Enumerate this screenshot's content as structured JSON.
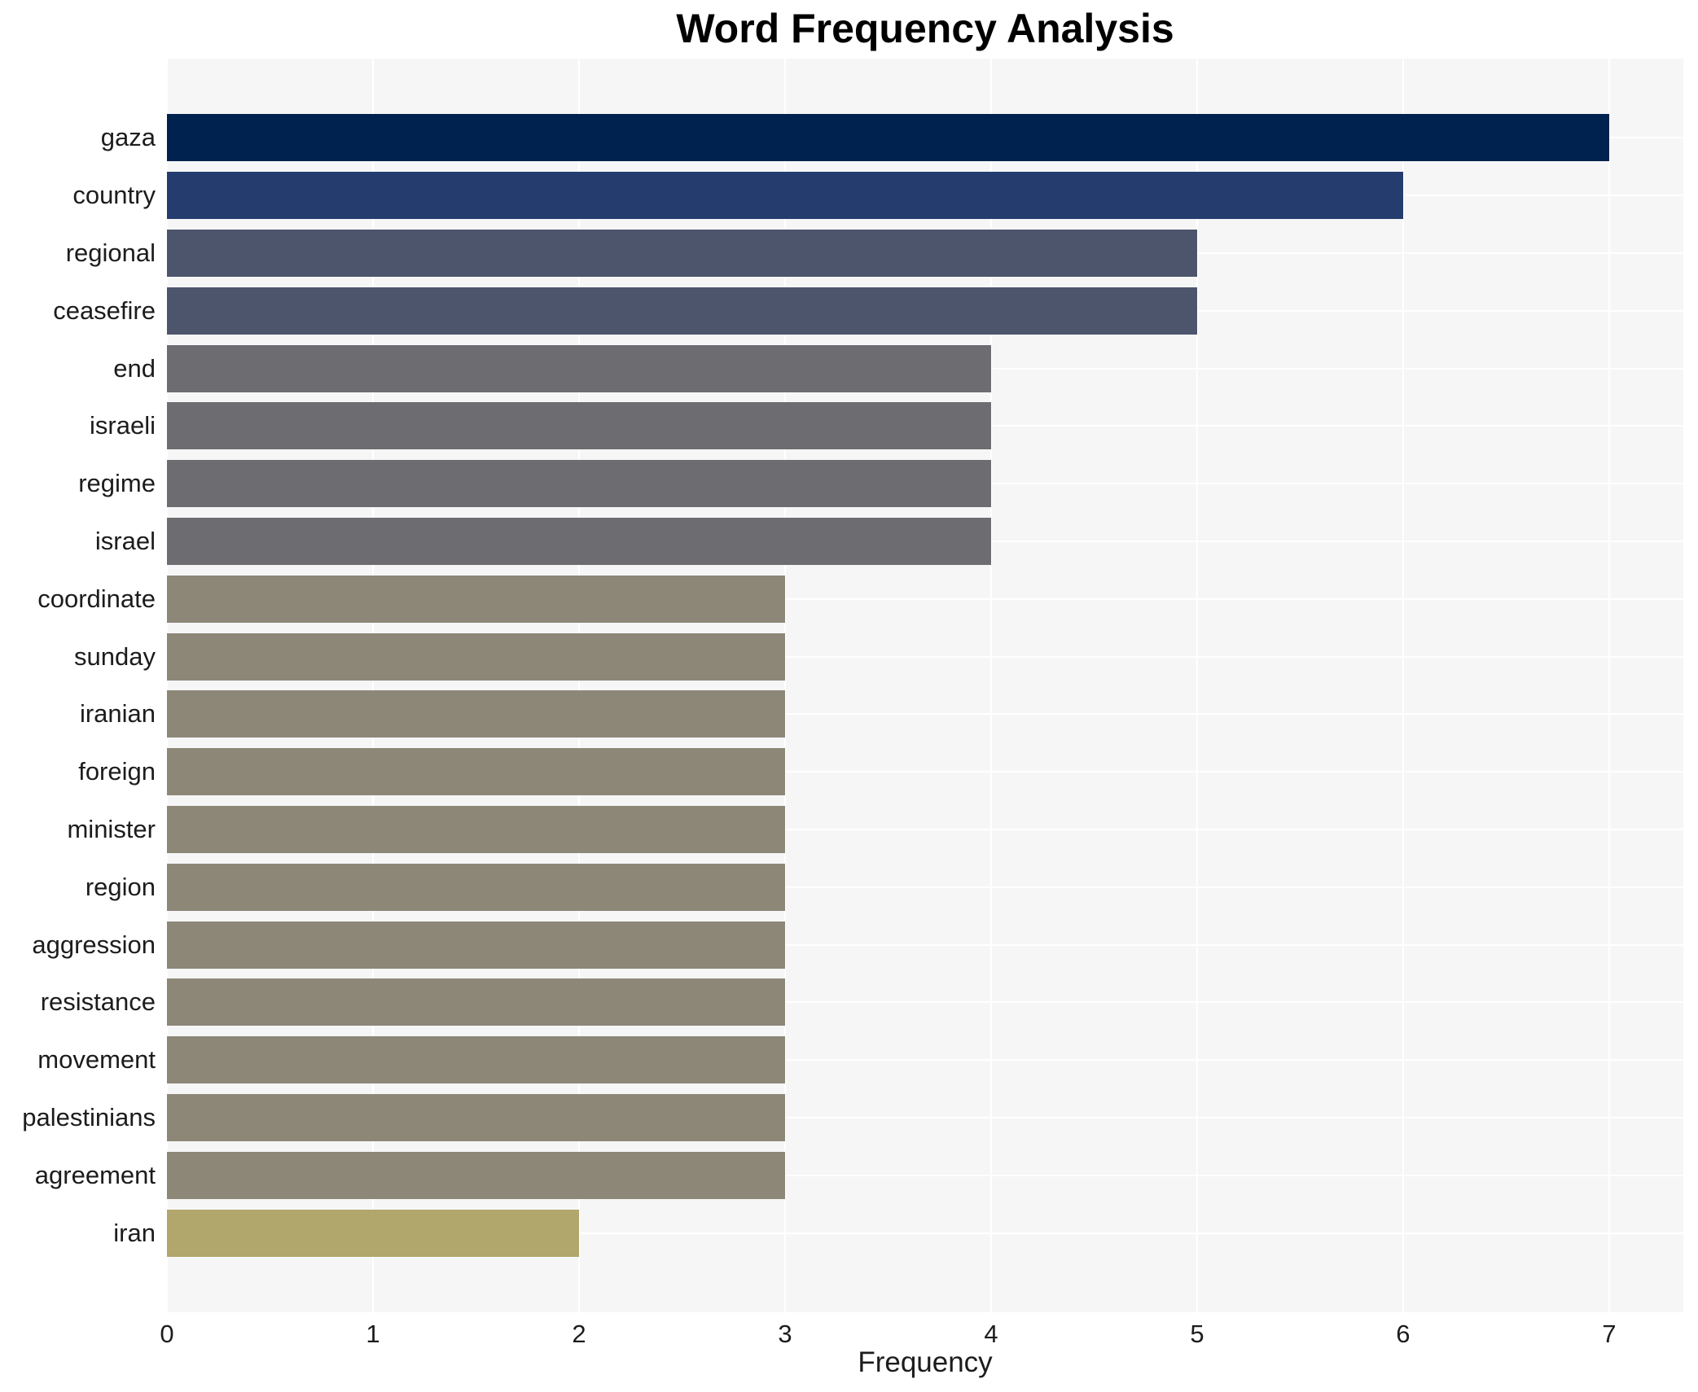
{
  "title": "Word Frequency Analysis",
  "chart_data": {
    "type": "bar",
    "orientation": "horizontal",
    "title": "Word Frequency Analysis",
    "xlabel": "Frequency",
    "ylabel": "",
    "categories": [
      "gaza",
      "country",
      "regional",
      "ceasefire",
      "end",
      "israeli",
      "regime",
      "israel",
      "coordinate",
      "sunday",
      "iranian",
      "foreign",
      "minister",
      "region",
      "aggression",
      "resistance",
      "movement",
      "palestinians",
      "agreement",
      "iran"
    ],
    "values": [
      7,
      6,
      5,
      5,
      4,
      4,
      4,
      4,
      3,
      3,
      3,
      3,
      3,
      3,
      3,
      3,
      3,
      3,
      3,
      2
    ],
    "bar_colors": [
      "#00224e",
      "#243d6e",
      "#4c556c",
      "#4c556c",
      "#6c6c71",
      "#6c6c71",
      "#6c6c71",
      "#6c6c71",
      "#8d8778",
      "#8d8778",
      "#8d8778",
      "#8d8778",
      "#8d8778",
      "#8d8778",
      "#8d8778",
      "#8d8778",
      "#8d8778",
      "#8d8778",
      "#8d8778",
      "#b1a66b"
    ],
    "x_ticks": [
      0,
      1,
      2,
      3,
      4,
      5,
      6,
      7
    ],
    "xlim": [
      0,
      7.36
    ],
    "grid": "on",
    "grid_color": "#ffffff",
    "plot_background": "#f6f6f7",
    "figure_background": "#ffffff",
    "legend": "none"
  }
}
